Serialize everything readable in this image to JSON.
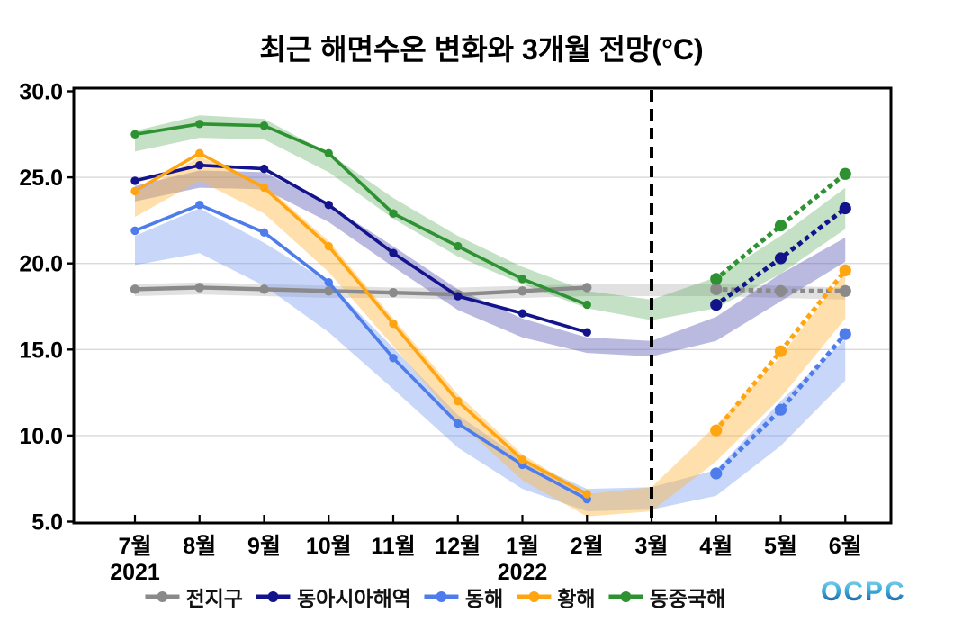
{
  "chart_data": {
    "type": "line",
    "title": "최근 해면수온 변화와 3개월 전망(°C)",
    "x_categories": [
      "7월",
      "8월",
      "9월",
      "10월",
      "11월",
      "12월",
      "1월",
      "2월",
      "3월",
      "4월",
      "5월",
      "6월"
    ],
    "x_year_labels": [
      {
        "label": "2021",
        "month_index": 0
      },
      {
        "label": "2022",
        "month_index": 6
      }
    ],
    "ylim": [
      5.0,
      30.0
    ],
    "yticks": [
      30.0,
      25.0,
      20.0,
      15.0,
      10.0,
      5.0
    ],
    "ytick_labels": [
      "30.0",
      "25.0",
      "20.0",
      "15.0",
      "10.0",
      "5.0"
    ],
    "gridline_values": [
      25.0,
      20.0,
      15.0,
      10.0
    ],
    "grid": "horizontal-light-gray",
    "legend_position": "bottom-center",
    "observed_month_indices": [
      0,
      1,
      2,
      3,
      4,
      5,
      6,
      7
    ],
    "forecast_month_indices": [
      9,
      10,
      11
    ],
    "forecast_divider": {
      "month_index": 8,
      "month_label": "3월",
      "style": "black-dashed-vertical"
    },
    "series": [
      {
        "key": "global",
        "name": "전지구",
        "color": "#8a8a8a",
        "band_color": "#9a9a9a",
        "band_opacity": 0.3,
        "observed": [
          18.5,
          18.6,
          18.5,
          18.4,
          18.3,
          18.2,
          18.4,
          18.6
        ],
        "forecast": [
          18.5,
          18.4,
          18.4
        ],
        "band_lower": [
          18.1,
          18.2,
          18.1,
          18.0,
          18.0,
          17.9,
          18.0,
          18.1,
          18.1,
          18.1,
          18.0,
          17.9
        ],
        "band_upper": [
          18.8,
          18.9,
          18.8,
          18.7,
          18.6,
          18.6,
          18.7,
          18.8,
          18.8,
          18.8,
          18.7,
          18.6
        ]
      },
      {
        "key": "east-asia-seas",
        "name": "동아시아해역",
        "color": "#13138c",
        "band_color": "#5a5ab4",
        "band_opacity": 0.42,
        "observed": [
          24.8,
          25.7,
          25.5,
          23.4,
          20.6,
          18.1,
          17.1,
          16.0
        ],
        "forecast": [
          17.6,
          20.3,
          23.2
        ],
        "band_lower": [
          23.6,
          24.4,
          24.3,
          22.4,
          19.8,
          17.3,
          15.7,
          14.8,
          14.6,
          15.5,
          17.8,
          20.1
        ],
        "band_upper": [
          24.5,
          25.4,
          25.3,
          23.4,
          21.0,
          18.5,
          16.8,
          15.7,
          15.5,
          16.9,
          19.4,
          21.5
        ]
      },
      {
        "key": "east-sea",
        "name": "동해",
        "color": "#4e7cea",
        "band_color": "#6e96f0",
        "band_opacity": 0.38,
        "observed": [
          21.9,
          23.4,
          21.8,
          18.9,
          14.5,
          10.7,
          8.3,
          6.3
        ],
        "forecast": [
          7.8,
          11.5,
          15.9
        ],
        "band_lower": [
          19.9,
          20.6,
          18.7,
          16.0,
          12.7,
          9.3,
          6.9,
          5.6,
          5.7,
          6.5,
          9.4,
          13.2
        ],
        "band_upper": [
          21.6,
          23.2,
          21.2,
          18.9,
          15.1,
          11.2,
          8.6,
          6.9,
          7.0,
          8.0,
          12.0,
          15.6
        ]
      },
      {
        "key": "yellow-sea",
        "name": "황해",
        "color": "#ffa512",
        "band_color": "#ffb43c",
        "band_opacity": 0.42,
        "observed": [
          24.2,
          26.4,
          24.4,
          21.0,
          16.5,
          12.0,
          8.6,
          6.6
        ],
        "forecast": [
          10.3,
          14.9,
          19.6
        ],
        "band_lower": [
          22.7,
          24.8,
          22.9,
          19.5,
          15.2,
          10.8,
          7.4,
          5.3,
          5.6,
          8.5,
          12.2,
          16.8
        ],
        "band_upper": [
          24.0,
          26.2,
          24.6,
          21.3,
          16.8,
          12.4,
          8.9,
          6.6,
          7.0,
          10.6,
          14.6,
          19.5
        ]
      },
      {
        "key": "east-china-sea",
        "name": "동중국해",
        "color": "#2e9232",
        "band_color": "#55a858",
        "band_opacity": 0.35,
        "observed": [
          27.5,
          28.1,
          28.0,
          26.4,
          22.9,
          21.0,
          19.1,
          17.6
        ],
        "forecast": [
          19.1,
          22.2,
          25.2
        ],
        "band_lower": [
          26.5,
          27.3,
          27.2,
          25.3,
          22.6,
          20.4,
          18.8,
          17.4,
          16.7,
          17.4,
          19.4,
          22.0
        ],
        "band_upper": [
          27.7,
          28.6,
          28.4,
          26.4,
          23.8,
          21.6,
          19.8,
          18.4,
          17.9,
          19.2,
          21.6,
          24.4
        ]
      }
    ]
  },
  "footer": {
    "logo_text": "OCPC"
  }
}
